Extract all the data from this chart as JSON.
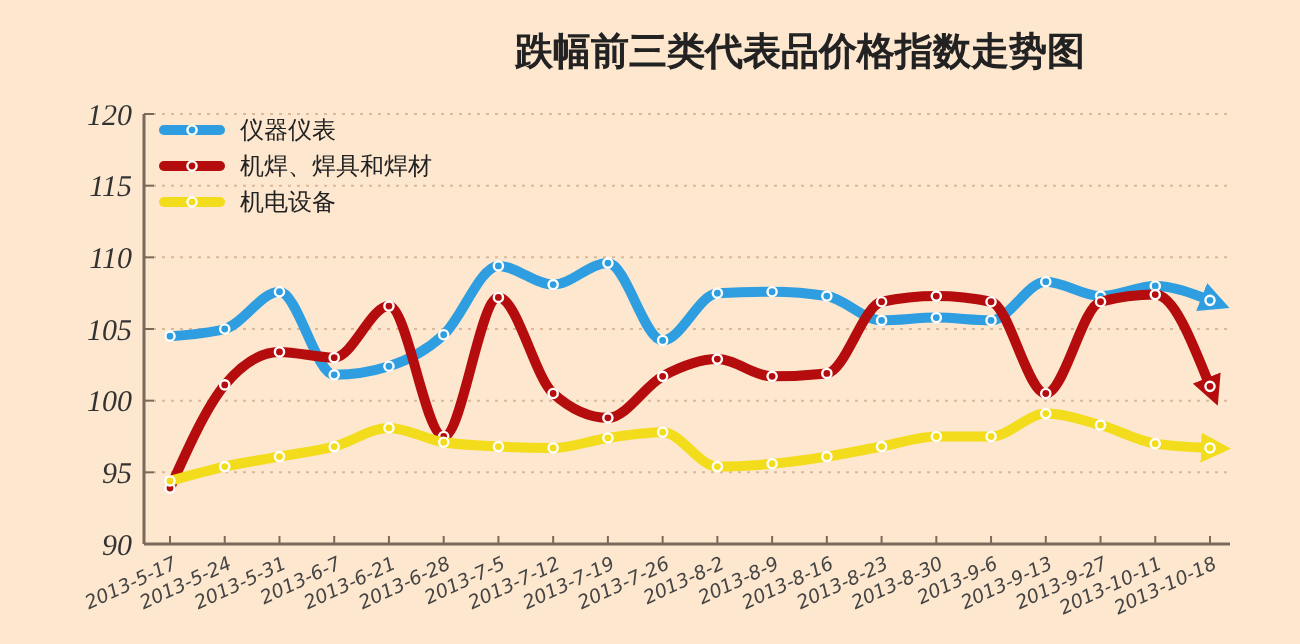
{
  "chart_data": {
    "type": "line",
    "title": "跌幅前三类代表品价格指数走势图",
    "categories": [
      "2013-5-17",
      "2013-5-24",
      "2013-5-31",
      "2013-6-7",
      "2013-6-21",
      "2013-6-28",
      "2013-7-5",
      "2013-7-12",
      "2013-7-19",
      "2013-7-26",
      "2013-8-2",
      "2013-8-9",
      "2013-8-16",
      "2013-8-23",
      "2013-8-30",
      "2013-9-6",
      "2013-9-13",
      "2013-9-27",
      "2013-10-11",
      "2013-10-18"
    ],
    "series": [
      {
        "name": "仪器仪表",
        "color": "#2e9ee0",
        "values": [
          104.5,
          105.0,
          107.6,
          101.8,
          102.4,
          104.6,
          109.4,
          108.1,
          109.6,
          104.2,
          107.5,
          107.6,
          107.3,
          105.6,
          105.8,
          105.6,
          108.3,
          107.3,
          108.0,
          107.0
        ]
      },
      {
        "name": "机焊、焊具和焊材",
        "color": "#b50d0d",
        "values": [
          93.9,
          101.1,
          103.4,
          103.0,
          106.6,
          97.5,
          107.2,
          100.5,
          98.8,
          101.7,
          102.9,
          101.7,
          101.9,
          106.9,
          107.3,
          106.9,
          100.5,
          106.9,
          107.4,
          101.0
        ]
      },
      {
        "name": "机电设备",
        "color": "#f2dc1c",
        "values": [
          94.4,
          95.4,
          96.1,
          96.8,
          98.1,
          97.1,
          96.8,
          96.7,
          97.4,
          97.8,
          95.4,
          95.6,
          96.1,
          96.8,
          97.5,
          97.5,
          99.1,
          98.3,
          97.0,
          96.7
        ]
      }
    ],
    "ylim": [
      90,
      120
    ],
    "yticks": [
      90,
      95,
      100,
      105,
      110,
      115,
      120
    ],
    "grid": "y",
    "legend": "top left",
    "marker": "circle",
    "line_style": "solid"
  }
}
